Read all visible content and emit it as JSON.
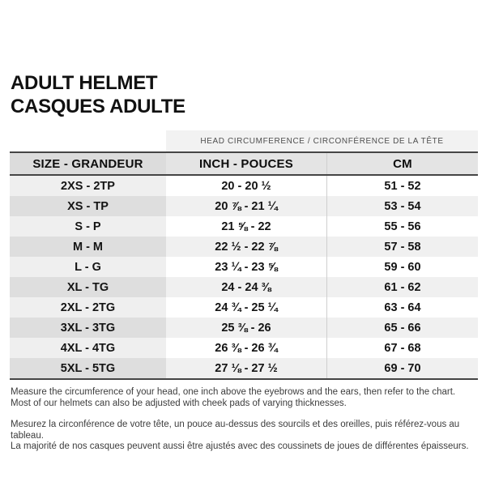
{
  "header": {
    "title_line1": "ADULT HELMET",
    "title_line2": "CASQUES ADULTE"
  },
  "table": {
    "band_title": "HEAD CIRCUMFERENCE / CIRCONFÉRENCE DE LA TÊTE",
    "columns": [
      "SIZE - GRANDEUR",
      "INCH - POUCES",
      "CM"
    ],
    "rows": [
      {
        "size": "2XS - 2TP",
        "inch": "20 - 20 ½",
        "cm": "51 - 52"
      },
      {
        "size": "XS - TP",
        "inch": "20 ⅞ - 21 ¼",
        "cm": "53 - 54"
      },
      {
        "size": "S - P",
        "inch": "21 ⅝ - 22",
        "cm": "55 - 56"
      },
      {
        "size": "M - M",
        "inch": "22 ½ - 22 ⅞",
        "cm": "57 - 58"
      },
      {
        "size": "L - G",
        "inch": "23 ¼ - 23 ⅝",
        "cm": "59 - 60"
      },
      {
        "size": "XL - TG",
        "inch": "24 - 24 ⅜",
        "cm": "61 - 62"
      },
      {
        "size": "2XL - 2TG",
        "inch": "24 ¾ - 25 ¼",
        "cm": "63 - 64"
      },
      {
        "size": "3XL - 3TG",
        "inch": "25 ⅜ - 26",
        "cm": "65 - 66"
      },
      {
        "size": "4XL - 4TG",
        "inch": "26 ⅜ - 26 ¾",
        "cm": "67 - 68"
      },
      {
        "size": "5XL - 5TG",
        "inch": "27 ⅛ - 27 ½",
        "cm": "69 - 70"
      }
    ]
  },
  "footer": {
    "en_line1": "Measure the circumference of your head, one inch above the eyebrows and the ears, then refer to the chart.",
    "en_line2": "Most of our helmets can also be adjusted with cheek pads of varying thicknesses.",
    "fr_line1": "Mesurez la circonférence de votre tête, un pouce au-dessus des sourcils et des oreilles, puis référez-vous au tableau.",
    "fr_line2": "La majorité de nos casques peuvent aussi être ajustés avec des coussinets de joues de différentes épaisseurs."
  }
}
